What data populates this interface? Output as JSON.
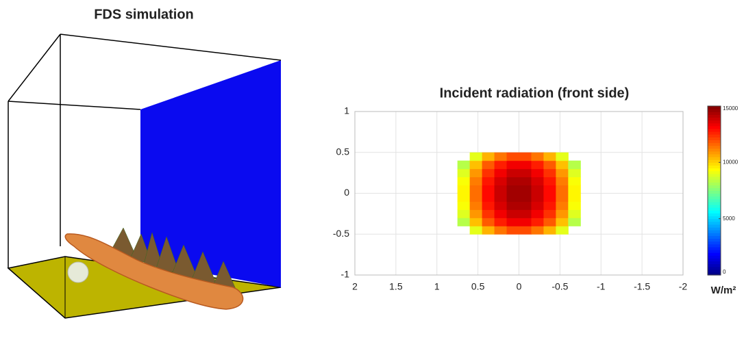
{
  "left_panel": {
    "title": "FDS simulation"
  },
  "chart_data": {
    "type": "heatmap",
    "title": "Incident radiation (front side)",
    "x": [
      0.675,
      0.525,
      0.375,
      0.225,
      0.075,
      -0.075,
      -0.225,
      -0.375,
      -0.525,
      -0.675
    ],
    "y": [
      -0.45,
      -0.35,
      -0.25,
      -0.15,
      -0.05,
      0.05,
      0.15,
      0.25,
      0.35,
      0.45
    ],
    "z": [
      [
        null,
        9000,
        10500,
        11400,
        12000,
        12000,
        11400,
        10500,
        9000,
        null
      ],
      [
        8300,
        10300,
        11800,
        12700,
        13300,
        13300,
        12700,
        11800,
        10300,
        8300
      ],
      [
        8900,
        10900,
        12400,
        13300,
        13900,
        13900,
        13300,
        12400,
        10900,
        8900
      ],
      [
        9300,
        11300,
        12800,
        13700,
        14300,
        14300,
        13700,
        12800,
        11300,
        9300
      ],
      [
        9500,
        11500,
        13000,
        13900,
        14500,
        14500,
        13900,
        13000,
        11500,
        9500
      ],
      [
        9500,
        11500,
        13000,
        13900,
        14500,
        14500,
        13900,
        13000,
        11500,
        9500
      ],
      [
        9300,
        11300,
        12800,
        13700,
        14300,
        14300,
        13700,
        12800,
        11300,
        9300
      ],
      [
        8900,
        10900,
        12400,
        13300,
        13900,
        13900,
        13300,
        12400,
        10900,
        8900
      ],
      [
        8300,
        10300,
        11800,
        12700,
        13300,
        13300,
        12700,
        11800,
        10300,
        8300
      ],
      [
        null,
        9000,
        10500,
        11400,
        12000,
        12000,
        11400,
        10500,
        9000,
        null
      ]
    ],
    "xlim": [
      2,
      -2
    ],
    "xticks": [
      2,
      1.5,
      1,
      0.5,
      0,
      -0.5,
      -1,
      -1.5,
      -2
    ],
    "ylim": [
      -1,
      1
    ],
    "yticks": [
      -1,
      -0.5,
      0,
      0.5,
      1
    ],
    "grid": true,
    "colormap": "jet",
    "clim": [
      0,
      15000
    ],
    "cticks": [
      0,
      5000,
      10000,
      15000
    ],
    "colorbar_label": "W/m²"
  }
}
